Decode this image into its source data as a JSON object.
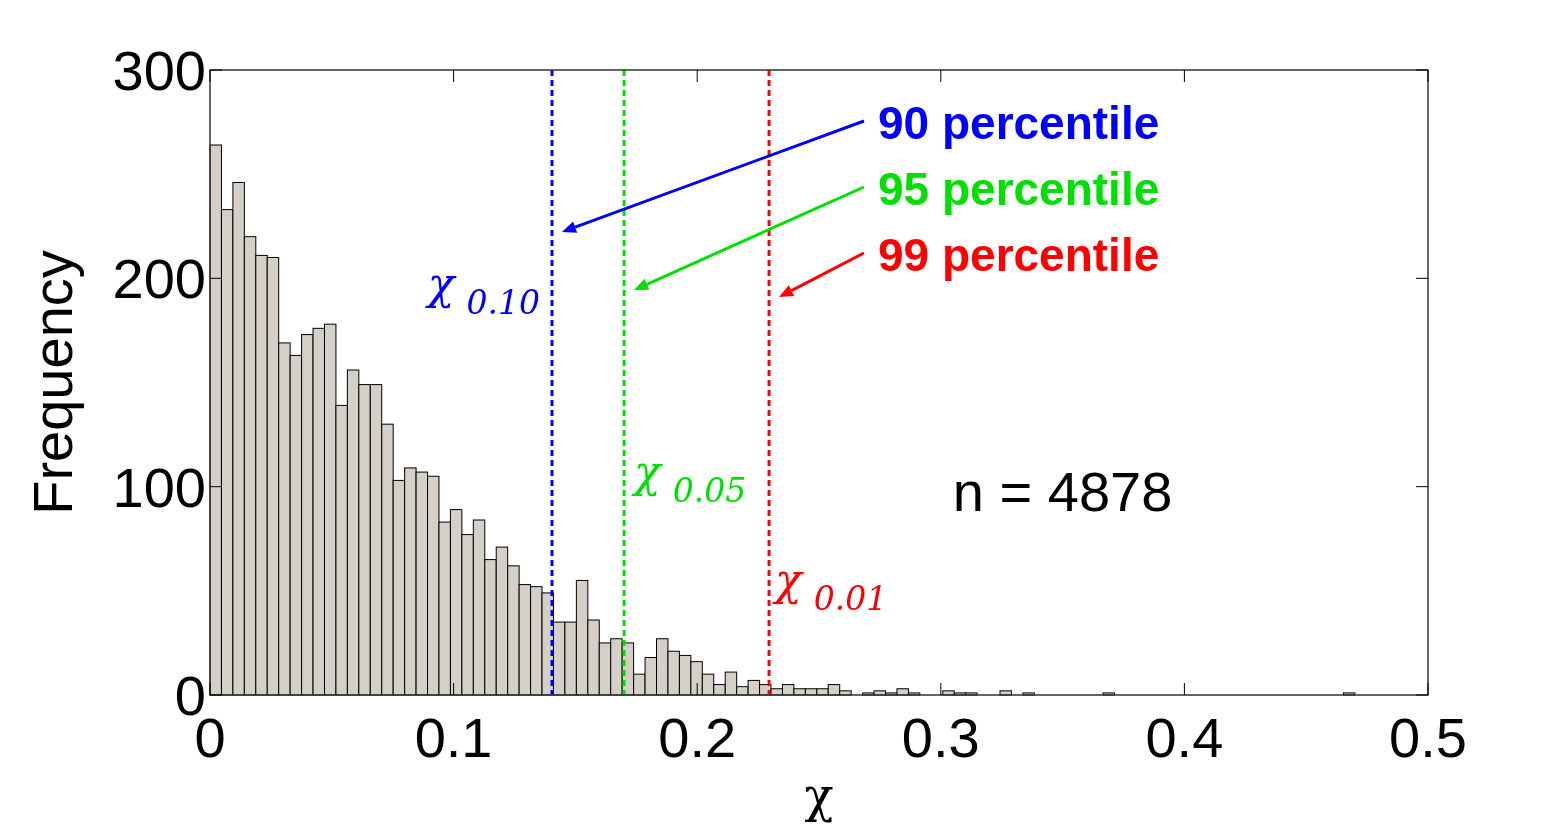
{
  "chart_data": {
    "type": "histogram",
    "xlabel": "χ",
    "ylabel": "Frequency",
    "bins": [
      0,
      0.0047,
      0.0094,
      0.0141,
      0.0188,
      0.0235,
      0.0282,
      0.0329,
      0.0376,
      0.0423,
      0.047,
      0.0517,
      0.0564,
      0.0611,
      0.0658,
      0.0705,
      0.0752,
      0.0799,
      0.0846,
      0.0893,
      0.094,
      0.0987,
      0.1034,
      0.1081,
      0.1128,
      0.1175,
      0.1222,
      0.1269,
      0.1316,
      0.1363,
      0.141,
      0.1457,
      0.1504,
      0.1551,
      0.1598,
      0.1645,
      0.1692,
      0.1739,
      0.1786,
      0.1833,
      0.188,
      0.1927,
      0.1974,
      0.2021,
      0.2068,
      0.2115,
      0.2162,
      0.2209,
      0.2256,
      0.2303,
      0.235,
      0.2397,
      0.2444,
      0.2491,
      0.2538,
      0.2585,
      0.2632,
      0.2679,
      0.2726,
      0.2773,
      0.282,
      0.2867,
      0.2914,
      0.2961,
      0.3008,
      0.3055,
      0.3102,
      0.3149,
      0.3196,
      0.3243,
      0.329,
      0.3337,
      0.3384,
      0.3431,
      0.3478,
      0.3525,
      0.3572,
      0.3619,
      0.3666,
      0.3713,
      0.376,
      0.3807,
      0.3854,
      0.3901,
      0.3948,
      0.3995,
      0.4042,
      0.4089,
      0.4136,
      0.4183,
      0.423,
      0.4277,
      0.4324,
      0.4371,
      0.4418,
      0.4465,
      0.4512,
      0.4559,
      0.4606,
      0.4653,
      0.47
    ],
    "values": [
      264,
      233,
      246,
      220,
      211,
      210,
      169,
      163,
      173,
      176,
      178,
      139,
      156,
      149,
      149,
      130,
      103,
      109,
      107,
      105,
      83,
      89,
      77,
      84,
      65,
      71,
      62,
      53,
      52,
      49,
      35,
      35,
      55,
      36,
      25,
      27,
      25,
      10,
      18,
      27,
      21,
      19,
      16,
      10,
      5,
      11,
      4,
      7,
      5,
      3,
      5,
      3,
      3,
      3,
      5,
      2,
      0,
      1,
      2,
      1,
      3,
      1,
      0,
      0,
      2,
      1,
      1,
      0,
      0,
      2,
      0,
      1,
      0,
      0,
      0,
      0,
      0,
      0,
      1,
      0,
      0,
      0,
      0,
      0,
      0,
      0,
      0,
      0,
      0,
      0,
      0,
      0,
      0,
      0,
      0,
      0,
      0,
      0,
      0,
      1
    ],
    "color": "#d4d0c8",
    "xlim": [
      0,
      0.5
    ],
    "xticks": [
      0,
      0.1,
      0.2,
      0.3,
      0.4,
      0.5
    ],
    "ylim": [
      0,
      300
    ],
    "yticks": [
      0,
      100,
      200,
      300
    ],
    "grid": false,
    "ref_lines": [
      {
        "axis": "x",
        "value": 0.1404,
        "label": "χ$_{0.10}$",
        "color": "#0000ff",
        "line_style": "dashed"
      },
      {
        "axis": "x",
        "value": 0.17,
        "label": "χ$_{0.05}$",
        "color": "#00e000",
        "line_style": "dashed"
      },
      {
        "axis": "x",
        "value": 0.2295,
        "label": "χ$_{0.01}$",
        "color": "#ff0000",
        "line_style": "dashed"
      }
    ],
    "annotations": [
      "90 percentile",
      "95 percentile",
      "99 percentile",
      "n = 4878"
    ]
  }
}
